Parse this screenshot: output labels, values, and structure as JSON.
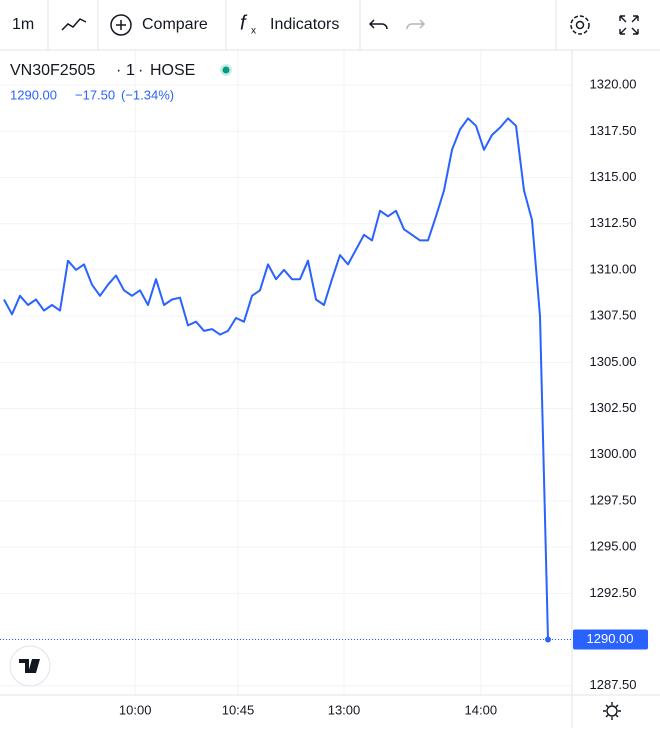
{
  "toolbar": {
    "interval": "1m",
    "compare": "Compare",
    "indicators": "Indicators"
  },
  "chart_data": {
    "type": "line",
    "legend": {
      "symbol": "VN30F2505",
      "interval": "1",
      "exchange": "HOSE",
      "last": "1290.00",
      "change": "−17.50",
      "change_pct": "(−1.34%)"
    },
    "color": "#2962ff",
    "values": [
      1308.4,
      1307.6,
      1308.6,
      1308.1,
      1308.4,
      1307.8,
      1308.1,
      1307.8,
      1310.5,
      1310.0,
      1310.3,
      1309.2,
      1308.6,
      1309.2,
      1309.7,
      1308.9,
      1308.6,
      1308.9,
      1308.1,
      1309.5,
      1308.1,
      1308.4,
      1308.5,
      1307.0,
      1307.2,
      1306.7,
      1306.8,
      1306.5,
      1306.7,
      1307.4,
      1307.2,
      1308.6,
      1308.9,
      1310.3,
      1309.5,
      1310.0,
      1309.5,
      1309.5,
      1310.5,
      1308.4,
      1308.1,
      1309.5,
      1310.8,
      1310.3,
      1311.1,
      1311.9,
      1311.6,
      1313.2,
      1312.9,
      1313.2,
      1312.2,
      1311.9,
      1311.6,
      1311.6,
      1312.9,
      1314.3,
      1316.5,
      1317.6,
      1318.2,
      1317.8,
      1316.5,
      1317.3,
      1317.7,
      1318.2,
      1317.8,
      1314.3,
      1312.7,
      1307.5,
      1290.0
    ],
    "last_price_label": "1290.00",
    "xlim": [
      -0.5,
      71
    ],
    "xticks": [
      {
        "value": 16.4,
        "label": "10:00"
      },
      {
        "value": 29.25,
        "label": "10:45"
      },
      {
        "value": 42.5,
        "label": "13:00"
      },
      {
        "value": 59.6,
        "label": "14:00"
      }
    ],
    "ylim": [
      1287.0,
      1321.9
    ],
    "yticks": [
      {
        "value": 1287.5,
        "label": "1287.50"
      },
      {
        "value": 1290,
        "label": "1290.00"
      },
      {
        "value": 1292.5,
        "label": "1292.50"
      },
      {
        "value": 1295,
        "label": "1295.00"
      },
      {
        "value": 1297.5,
        "label": "1297.50"
      },
      {
        "value": 1300,
        "label": "1300.00"
      },
      {
        "value": 1302.5,
        "label": "1302.50"
      },
      {
        "value": 1305,
        "label": "1305.00"
      },
      {
        "value": 1307.5,
        "label": "1307.50"
      },
      {
        "value": 1310,
        "label": "1310.00"
      },
      {
        "value": 1312.5,
        "label": "1312.50"
      },
      {
        "value": 1315,
        "label": "1315.00"
      },
      {
        "value": 1317.5,
        "label": "1317.50"
      },
      {
        "value": 1320,
        "label": "1320.00"
      }
    ],
    "grid": true
  }
}
